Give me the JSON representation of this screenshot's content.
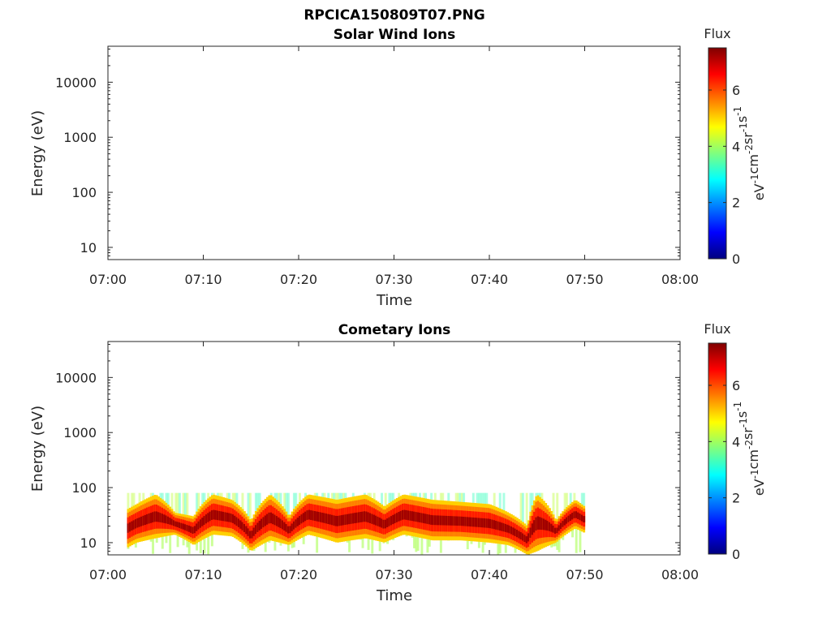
{
  "figure": {
    "title": "RPCICA150809T07.PNG"
  },
  "colorbar": {
    "label": "Flux",
    "unit_base": [
      "eV",
      "cm",
      "sr",
      "s"
    ],
    "unit_exp": [
      "-1",
      "-2",
      "-1",
      "-1"
    ],
    "ticks": [
      "0",
      "2",
      "4",
      "6"
    ],
    "range": [
      0,
      7.5
    ],
    "colormap": "jet",
    "colors": [
      "#00007f",
      "#0000ff",
      "#007fff",
      "#00ffff",
      "#7fff7f",
      "#ffff00",
      "#ff7f00",
      "#ff0000",
      "#7f0000"
    ]
  },
  "chart_data": [
    {
      "type": "heatmap",
      "title": "Solar Wind Ions",
      "xlabel": "Time",
      "ylabel": "Energy (eV)",
      "xticks": [
        "07:00",
        "07:10",
        "07:20",
        "07:30",
        "07:40",
        "07:50",
        "08:00"
      ],
      "xlim": [
        "07:00",
        "08:00"
      ],
      "yticks": [
        "10",
        "100",
        "1000",
        "10000"
      ],
      "ylim": [
        6,
        45000
      ],
      "yscale": "log",
      "data": []
    },
    {
      "type": "heatmap",
      "title": "Cometary Ions",
      "xlabel": "Time",
      "ylabel": "Energy (eV)",
      "xticks": [
        "07:00",
        "07:10",
        "07:20",
        "07:30",
        "07:40",
        "07:50",
        "08:00"
      ],
      "xlim": [
        "07:00",
        "08:00"
      ],
      "yticks": [
        "10",
        "100",
        "1000",
        "10000"
      ],
      "ylim": [
        6,
        45000
      ],
      "yscale": "log",
      "time_range": [
        "07:02",
        "07:50"
      ],
      "energy_range_eV": [
        6,
        80
      ],
      "band": [
        {
          "t": "07:02",
          "lo": 8,
          "hi": 40
        },
        {
          "t": "07:03",
          "lo": 10,
          "hi": 50
        },
        {
          "t": "07:05",
          "lo": 12,
          "hi": 75
        },
        {
          "t": "07:07",
          "lo": 14,
          "hi": 35
        },
        {
          "t": "07:09",
          "lo": 9,
          "hi": 30
        },
        {
          "t": "07:11",
          "lo": 14,
          "hi": 75
        },
        {
          "t": "07:13",
          "lo": 13,
          "hi": 60
        },
        {
          "t": "07:15",
          "lo": 7,
          "hi": 25
        },
        {
          "t": "07:17",
          "lo": 11,
          "hi": 75
        },
        {
          "t": "07:19",
          "lo": 9,
          "hi": 30
        },
        {
          "t": "07:21",
          "lo": 14,
          "hi": 75
        },
        {
          "t": "07:24",
          "lo": 10,
          "hi": 60
        },
        {
          "t": "07:27",
          "lo": 12,
          "hi": 75
        },
        {
          "t": "07:29",
          "lo": 10,
          "hi": 45
        },
        {
          "t": "07:31",
          "lo": 14,
          "hi": 75
        },
        {
          "t": "07:34",
          "lo": 11,
          "hi": 60
        },
        {
          "t": "07:37",
          "lo": 11,
          "hi": 55
        },
        {
          "t": "07:40",
          "lo": 10,
          "hi": 50
        },
        {
          "t": "07:42",
          "lo": 9,
          "hi": 35
        },
        {
          "t": "07:44",
          "lo": 6,
          "hi": 20
        },
        {
          "t": "07:45",
          "lo": 7,
          "hi": 75
        },
        {
          "t": "07:47",
          "lo": 10,
          "hi": 25
        },
        {
          "t": "07:49",
          "lo": 18,
          "hi": 60
        },
        {
          "t": "07:50",
          "lo": 15,
          "hi": 45
        }
      ]
    }
  ]
}
